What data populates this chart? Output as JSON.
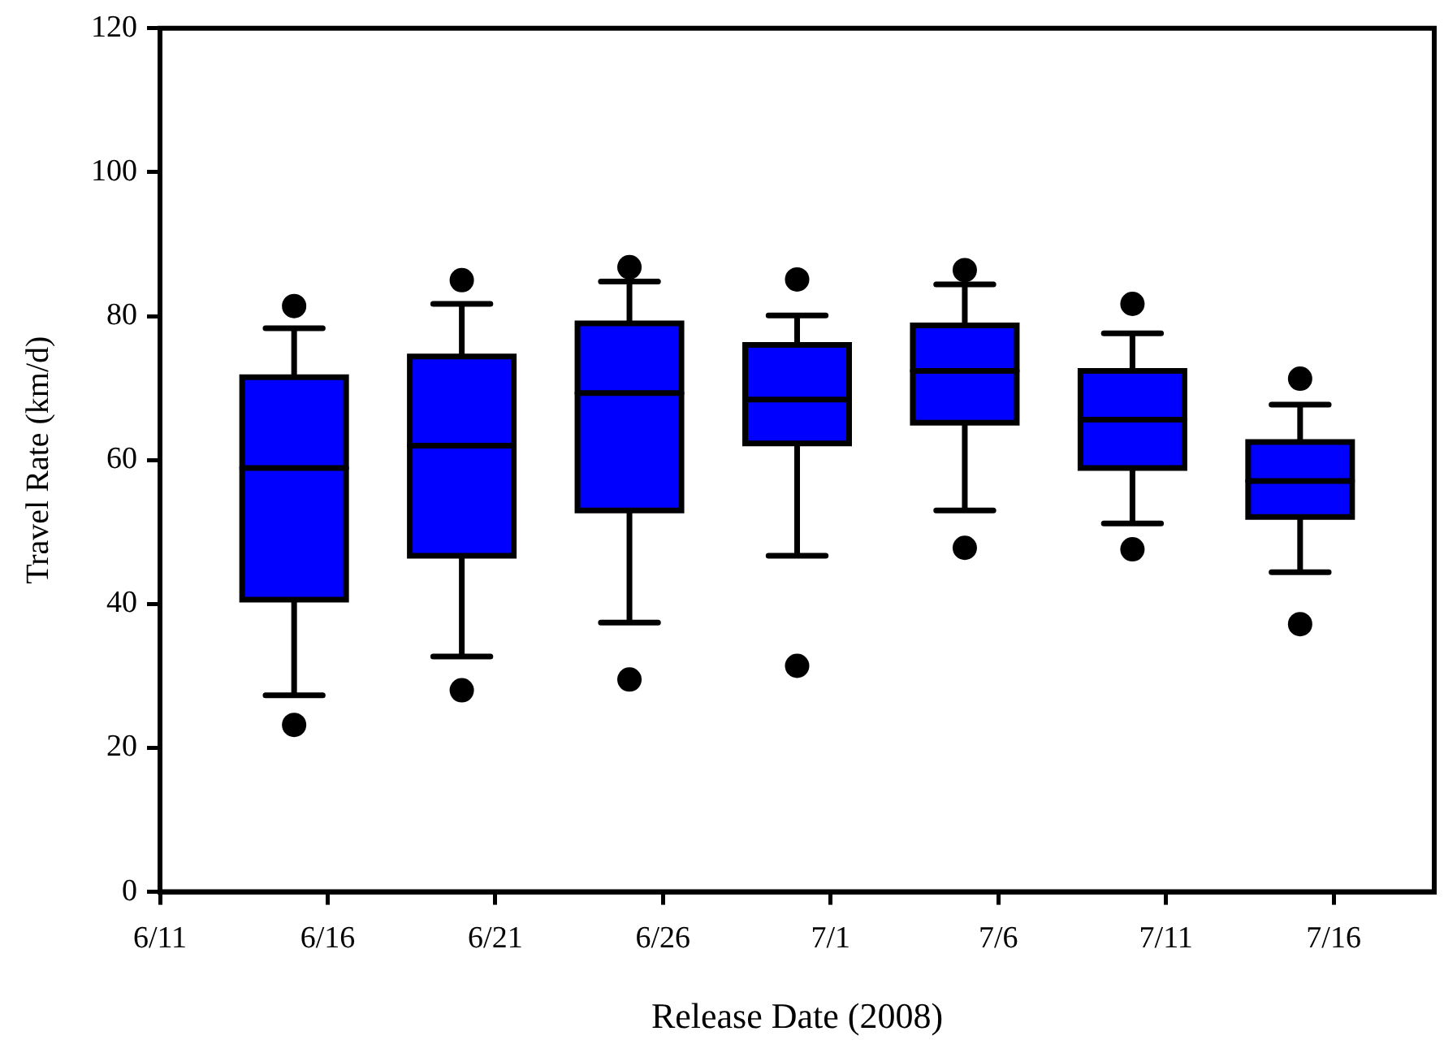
{
  "chart_data": {
    "type": "box",
    "xlabel": "Release Date (2008)",
    "ylabel": "Travel Rate (km/d)",
    "x": [
      "2008-06-15",
      "2008-06-20",
      "2008-06-25",
      "2008-06-30",
      "2008-07-05",
      "2008-07-10",
      "2008-07-15"
    ],
    "color": "#0000ff",
    "boxes": [
      {
        "low": 27.3,
        "q1": 40.6,
        "median": 58.9,
        "q3": 71.5,
        "high": 78.3,
        "outliers": [
          81.4,
          23.2
        ]
      },
      {
        "low": 32.7,
        "q1": 46.7,
        "median": 62.0,
        "q3": 74.4,
        "high": 81.7,
        "outliers": [
          85.0,
          28.0
        ]
      },
      {
        "low": 37.4,
        "q1": 53.0,
        "median": 69.3,
        "q3": 79.0,
        "high": 84.8,
        "outliers": [
          86.8,
          29.5
        ]
      },
      {
        "low": 46.7,
        "q1": 62.3,
        "median": 68.4,
        "q3": 76.0,
        "high": 80.1,
        "outliers": [
          85.1,
          31.4
        ]
      },
      {
        "low": 53.0,
        "q1": 65.2,
        "median": 72.4,
        "q3": 78.7,
        "high": 84.4,
        "outliers": [
          86.4,
          47.8
        ]
      },
      {
        "low": 51.2,
        "q1": 58.9,
        "median": 65.6,
        "q3": 72.4,
        "high": 77.6,
        "outliers": [
          81.7,
          47.6
        ]
      },
      {
        "low": 44.4,
        "q1": 52.1,
        "median": 57.1,
        "q3": 62.5,
        "high": 67.7,
        "outliers": [
          71.3,
          37.2
        ]
      }
    ],
    "xlim": [
      "2008-06-11",
      "2008-07-19"
    ],
    "xticks": [
      {
        "value": "2008-06-11",
        "label": "6/11"
      },
      {
        "value": "2008-06-16",
        "label": "6/16"
      },
      {
        "value": "2008-06-21",
        "label": "6/21"
      },
      {
        "value": "2008-06-26",
        "label": "6/26"
      },
      {
        "value": "2008-07-01",
        "label": "7/1"
      },
      {
        "value": "2008-07-06",
        "label": "7/6"
      },
      {
        "value": "2008-07-11",
        "label": "7/11"
      },
      {
        "value": "2008-07-16",
        "label": "7/16"
      }
    ],
    "ylim": [
      0,
      120
    ],
    "yticks": [
      0,
      20,
      40,
      60,
      80,
      100,
      120
    ],
    "grid": false,
    "legend": false
  }
}
